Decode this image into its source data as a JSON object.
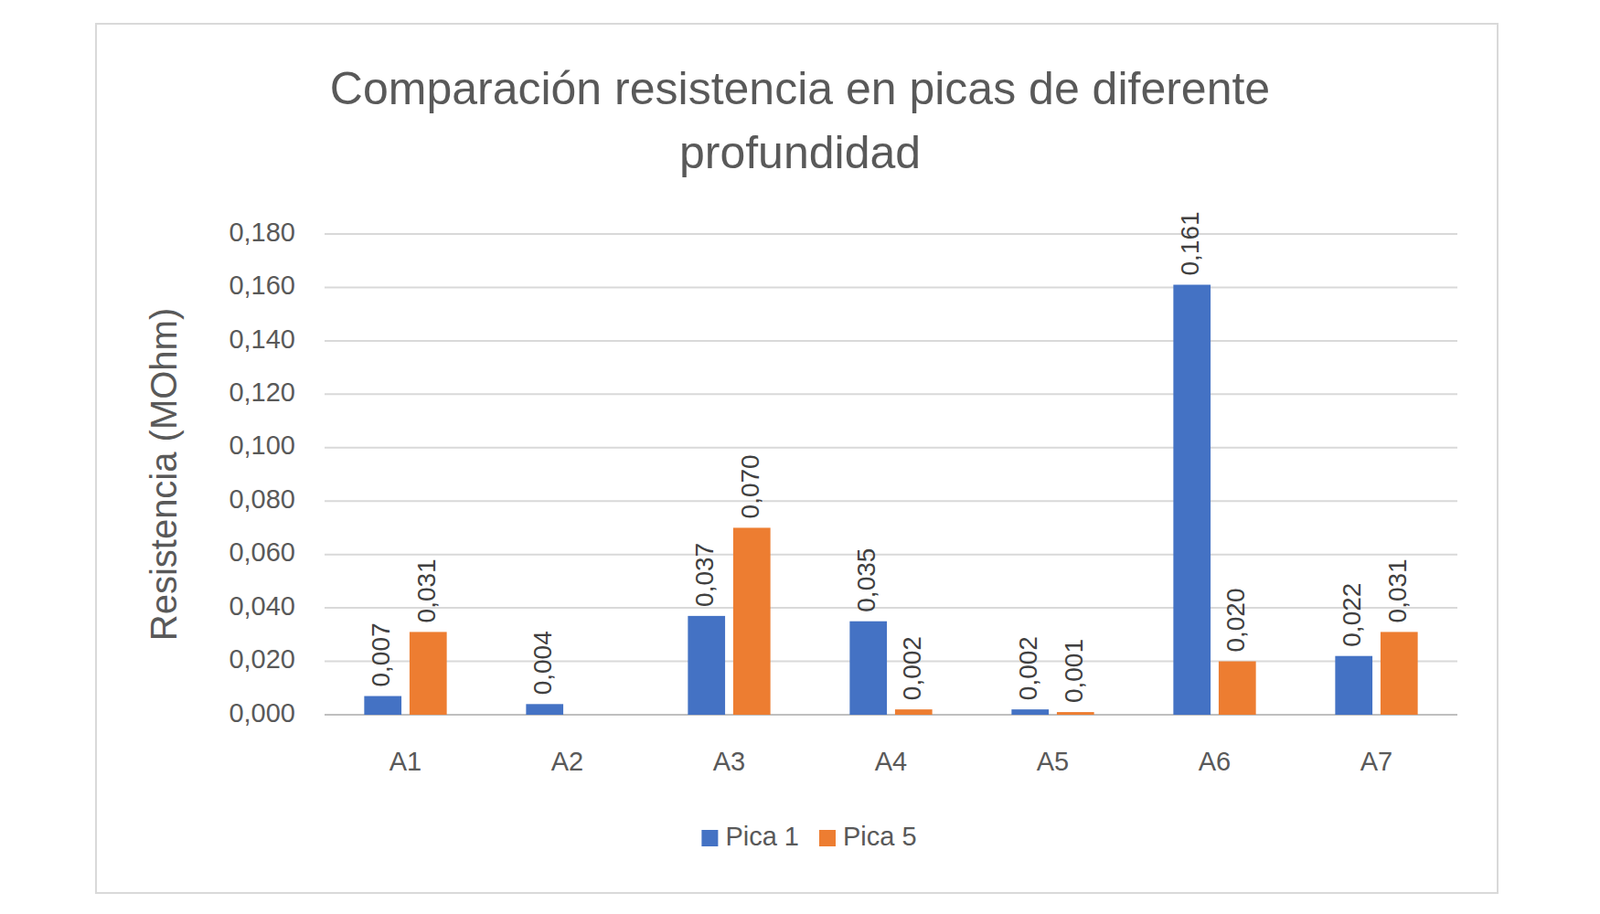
{
  "chart_data": {
    "type": "bar",
    "title": "Comparación resistencia en picas de diferente profundidad",
    "y_label": "Resistencia (MOhm)",
    "categories": [
      "A1",
      "A2",
      "A3",
      "A4",
      "A5",
      "A6",
      "A7"
    ],
    "series": [
      {
        "name": "Pica 1",
        "color": "#4472c4",
        "values": [
          0.007,
          0.004,
          0.037,
          0.035,
          0.002,
          0.161,
          0.022
        ],
        "value_labels": [
          "0,007",
          "0,004",
          "0,037",
          "0,035",
          "0,002",
          "0,161",
          "0,022"
        ]
      },
      {
        "name": "Pica 5",
        "color": "#ed7d31",
        "values": [
          0.031,
          null,
          0.07,
          0.002,
          0.001,
          0.02,
          0.031
        ],
        "value_labels": [
          "0,031",
          null,
          "0,070",
          "0,002",
          "0,001",
          "0,020",
          "0,031"
        ]
      }
    ],
    "ylim": [
      0,
      0.18
    ],
    "yticks": [
      {
        "value": 0,
        "label": "0,000"
      },
      {
        "value": 0.02,
        "label": "0,020"
      },
      {
        "value": 0.04,
        "label": "0,040"
      },
      {
        "value": 0.06,
        "label": "0,060"
      },
      {
        "value": 0.08,
        "label": "0,080"
      },
      {
        "value": 0.1,
        "label": "0,100"
      },
      {
        "value": 0.12,
        "label": "0,120"
      },
      {
        "value": 0.14,
        "label": "0,140"
      },
      {
        "value": 0.16,
        "label": "0,160"
      },
      {
        "value": 0.18,
        "label": "0,180"
      }
    ],
    "grid": true,
    "data_labels": true,
    "legend": "bottom"
  }
}
